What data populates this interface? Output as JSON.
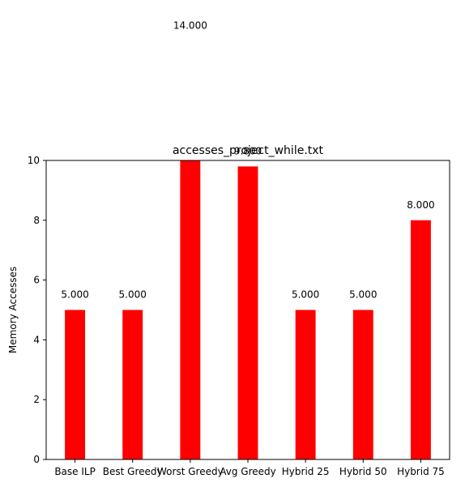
{
  "chart_data": {
    "type": "bar",
    "title": "accesses_project_while.txt",
    "xlabel": "",
    "ylabel": "Memory Accesses",
    "categories": [
      "Base ILP",
      "Best Greedy",
      "Worst Greedy",
      "Avg Greedy",
      "Hybrid 25",
      "Hybrid 50",
      "Hybrid 75"
    ],
    "values": [
      5.0,
      5.0,
      14.0,
      9.8,
      5.0,
      5.0,
      8.0
    ],
    "value_labels": [
      "5.000",
      "5.000",
      "14.000",
      "9.800",
      "5.000",
      "5.000",
      "8.000"
    ],
    "ylim": [
      0,
      10
    ],
    "yticks": [
      "0",
      "2",
      "4",
      "6",
      "8",
      "10"
    ],
    "bar_color": "#ff0000",
    "grid": false,
    "legend": "none"
  }
}
